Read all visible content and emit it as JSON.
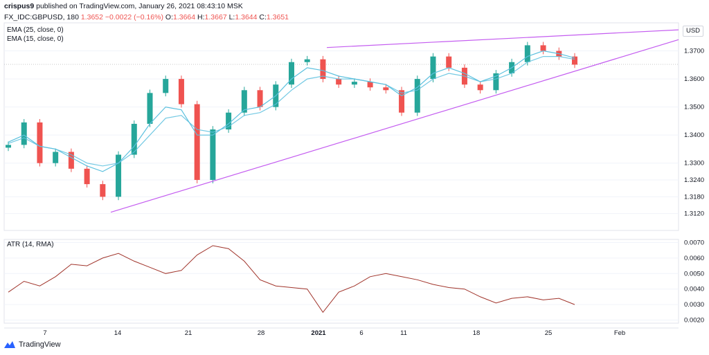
{
  "header": {
    "author": "crispus9",
    "published": "published on TradingView.com, January 26, 2021 08:43:10 MSK"
  },
  "ohlc": {
    "symbol": "FX_IDC:GBPUSD, 180",
    "last": "1.3652",
    "change": "−0.0022 (−0.16%)",
    "o_label": "O:",
    "o": "1.3664",
    "h_label": "H:",
    "h": "1.3667",
    "l_label": "L:",
    "l": "1.3644",
    "c_label": "C:",
    "c": "1.3651"
  },
  "legend": {
    "ema25": "EMA (25, close, 0)",
    "ema15": "EMA (15, close, 0)",
    "atr": "ATR (14, RMA)"
  },
  "currency_label": "USD",
  "brand": "TradingView",
  "colors": {
    "up": "#26a69a",
    "down": "#ef5350",
    "ema": "#5bc0de",
    "trendline": "#c45cf0",
    "atr": "#a0332a",
    "grid": "#f0f3fa"
  },
  "chart_data": [
    {
      "type": "candlestick",
      "title": "GBPUSD 180",
      "ylim": [
        1.306,
        1.38
      ],
      "y_ticks": [
        "1.3700",
        "1.3600",
        "1.3500",
        "1.3400",
        "1.3300",
        "1.3240",
        "1.3180",
        "1.3120"
      ],
      "x_ticks": [
        "7",
        "14",
        "21",
        "28",
        "2021",
        "6",
        "11",
        "18",
        "25",
        "Feb"
      ],
      "x": [
        "Dec 3",
        "Dec 4",
        "Dec 7",
        "Dec 8",
        "Dec 9",
        "Dec 10",
        "Dec 11",
        "Dec 14",
        "Dec 15",
        "Dec 16",
        "Dec 17",
        "Dec 18",
        "Dec 21",
        "Dec 22",
        "Dec 23",
        "Dec 24",
        "Dec 28",
        "Dec 29",
        "Dec 30",
        "Dec 31",
        "Jan 4",
        "Jan 5",
        "Jan 6",
        "Jan 7",
        "Jan 8",
        "Jan 11",
        "Jan 12",
        "Jan 13",
        "Jan 14",
        "Jan 15",
        "Jan 18",
        "Jan 19",
        "Jan 20",
        "Jan 21",
        "Jan 22",
        "Jan 25",
        "Jan 26"
      ],
      "close": [
        1.3365,
        1.3445,
        1.33,
        1.334,
        1.328,
        1.3225,
        1.318,
        1.333,
        1.344,
        1.355,
        1.36,
        1.351,
        1.324,
        1.342,
        1.348,
        1.356,
        1.35,
        1.358,
        1.366,
        1.367,
        1.36,
        1.358,
        1.359,
        1.357,
        1.356,
        1.348,
        1.36,
        1.368,
        1.364,
        1.358,
        1.356,
        1.362,
        1.366,
        1.372,
        1.37,
        1.368,
        1.3651
      ],
      "series": [
        {
          "name": "EMA (25, close, 0)",
          "values": [
            1.337,
            1.339,
            1.336,
            1.335,
            1.333,
            1.33,
            1.329,
            1.33,
            1.334,
            1.34,
            1.346,
            1.347,
            1.342,
            1.341,
            1.343,
            1.347,
            1.348,
            1.351,
            1.356,
            1.36,
            1.361,
            1.36,
            1.36,
            1.359,
            1.358,
            1.355,
            1.356,
            1.36,
            1.362,
            1.361,
            1.359,
            1.36,
            1.362,
            1.366,
            1.368,
            1.368,
            1.367
          ]
        },
        {
          "name": "EMA (15, close, 0)",
          "values": [
            1.3375,
            1.34,
            1.336,
            1.335,
            1.332,
            1.329,
            1.327,
            1.33,
            1.336,
            1.344,
            1.35,
            1.349,
            1.34,
            1.34,
            1.344,
            1.349,
            1.35,
            1.354,
            1.36,
            1.364,
            1.363,
            1.361,
            1.36,
            1.359,
            1.358,
            1.354,
            1.357,
            1.362,
            1.364,
            1.362,
            1.359,
            1.361,
            1.364,
            1.368,
            1.37,
            1.369,
            1.3675
          ]
        }
      ]
    },
    {
      "type": "line",
      "title": "ATR (14, RMA)",
      "ylim": [
        0.0018,
        0.0072
      ],
      "y_ticks": [
        "0.0070",
        "0.0060",
        "0.0050",
        "0.0040",
        "0.0030",
        "0.0020"
      ],
      "series": [
        {
          "name": "ATR (14, RMA)",
          "values": [
            0.0038,
            0.0045,
            0.0042,
            0.0048,
            0.0056,
            0.0055,
            0.006,
            0.0063,
            0.0058,
            0.0054,
            0.005,
            0.0052,
            0.0062,
            0.0068,
            0.0066,
            0.0058,
            0.0046,
            0.0042,
            0.0041,
            0.004,
            0.0025,
            0.0038,
            0.0042,
            0.0048,
            0.005,
            0.0048,
            0.0046,
            0.0043,
            0.0041,
            0.004,
            0.0035,
            0.0031,
            0.0034,
            0.0035,
            0.0033,
            0.0034,
            0.003
          ]
        }
      ]
    }
  ]
}
